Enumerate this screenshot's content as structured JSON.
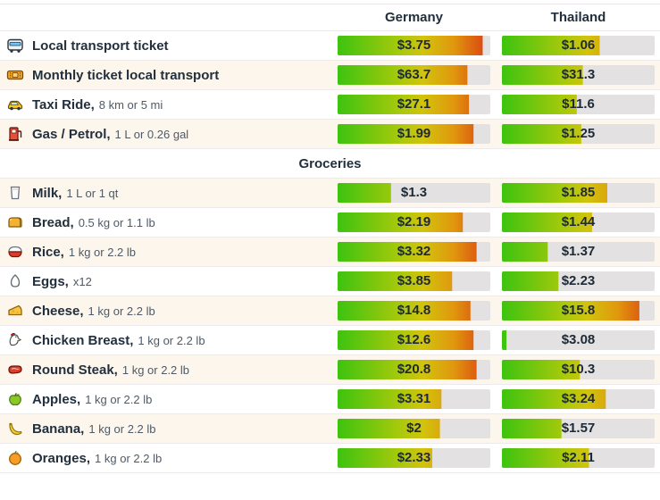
{
  "table": {
    "columns": [
      "Germany",
      "Thailand"
    ],
    "rows": [
      {
        "icon": "bus-icon",
        "name": "Local transport ticket",
        "detail": "",
        "germany": {
          "value": "$3.75",
          "pct": 95
        },
        "thailand": {
          "value": "$1.06",
          "pct": 64
        }
      },
      {
        "icon": "ticket-icon",
        "name": "Monthly ticket local transport",
        "detail": "",
        "germany": {
          "value": "$63.7",
          "pct": 85
        },
        "thailand": {
          "value": "$31.3",
          "pct": 53
        }
      },
      {
        "icon": "taxi-icon",
        "name": "Taxi Ride,",
        "detail": "8 km or 5 mi",
        "germany": {
          "value": "$27.1",
          "pct": 86
        },
        "thailand": {
          "value": "$11.6",
          "pct": 49
        }
      },
      {
        "icon": "fuel-icon",
        "name": "Gas / Petrol,",
        "detail": "1 L or 0.26 gal",
        "germany": {
          "value": "$1.99",
          "pct": 89
        },
        "thailand": {
          "value": "$1.25",
          "pct": 52
        }
      },
      {
        "section": "Groceries"
      },
      {
        "icon": "milk-icon",
        "name": "Milk,",
        "detail": "1 L or 1 qt",
        "germany": {
          "value": "$1.3",
          "pct": 35
        },
        "thailand": {
          "value": "$1.85",
          "pct": 69
        }
      },
      {
        "icon": "bread-icon",
        "name": "Bread,",
        "detail": "0.5 kg or 1.1 lb",
        "germany": {
          "value": "$2.19",
          "pct": 82
        },
        "thailand": {
          "value": "$1.44",
          "pct": 59
        }
      },
      {
        "icon": "rice-icon",
        "name": "Rice,",
        "detail": "1 kg or 2.2 lb",
        "germany": {
          "value": "$3.32",
          "pct": 91
        },
        "thailand": {
          "value": "$1.37",
          "pct": 30
        }
      },
      {
        "icon": "egg-icon",
        "name": "Eggs,",
        "detail": "x12",
        "germany": {
          "value": "$3.85",
          "pct": 75
        },
        "thailand": {
          "value": "$2.23",
          "pct": 37
        }
      },
      {
        "icon": "cheese-icon",
        "name": "Cheese,",
        "detail": "1 kg or 2.2 lb",
        "germany": {
          "value": "$14.8",
          "pct": 87
        },
        "thailand": {
          "value": "$15.8",
          "pct": 90
        }
      },
      {
        "icon": "chicken-icon",
        "name": "Chicken Breast,",
        "detail": "1 kg or 2.2 lb",
        "germany": {
          "value": "$12.6",
          "pct": 89
        },
        "thailand": {
          "value": "$3.08",
          "pct": 3
        }
      },
      {
        "icon": "steak-icon",
        "name": "Round Steak,",
        "detail": "1 kg or 2.2 lb",
        "germany": {
          "value": "$20.8",
          "pct": 91
        },
        "thailand": {
          "value": "$10.3",
          "pct": 51
        }
      },
      {
        "icon": "apple-icon",
        "name": "Apples,",
        "detail": "1 kg or 2.2 lb",
        "germany": {
          "value": "$3.31",
          "pct": 68
        },
        "thailand": {
          "value": "$3.24",
          "pct": 68
        }
      },
      {
        "icon": "banana-icon",
        "name": "Banana,",
        "detail": "1 kg or 2.2 lb",
        "germany": {
          "value": "$2",
          "pct": 67
        },
        "thailand": {
          "value": "$1.57",
          "pct": 39
        }
      },
      {
        "icon": "orange-icon",
        "name": "Oranges,",
        "detail": "1 kg or 2.2 lb",
        "germany": {
          "value": "$2.33",
          "pct": 62
        },
        "thailand": {
          "value": "$2.11",
          "pct": 57
        }
      }
    ]
  },
  "colors": {
    "bar_gradient": [
      "#3dc30f",
      "#a6c90c",
      "#d2c30d",
      "#e0970e",
      "#dc4511"
    ],
    "bar_track": "#e3e1e2",
    "row_alt_background": "#fdf6ec",
    "text": "#22303e",
    "detail_text": "#4e5a67"
  },
  "chart_data": {
    "type": "bar",
    "title": "",
    "categories": [
      "Local transport ticket",
      "Monthly ticket local transport",
      "Taxi Ride (8 km or 5 mi)",
      "Gas / Petrol (1 L or 0.26 gal)",
      "Milk (1 L or 1 qt)",
      "Bread (0.5 kg or 1.1 lb)",
      "Rice (1 kg or 2.2 lb)",
      "Eggs (x12)",
      "Cheese (1 kg or 2.2 lb)",
      "Chicken Breast (1 kg or 2.2 lb)",
      "Round Steak (1 kg or 2.2 lb)",
      "Apples (1 kg or 2.2 lb)",
      "Banana (1 kg or 2.2 lb)",
      "Oranges (1 kg or 2.2 lb)"
    ],
    "series": [
      {
        "name": "Germany",
        "values_usd": [
          3.75,
          63.7,
          27.1,
          1.99,
          1.3,
          2.19,
          3.32,
          3.85,
          14.8,
          12.6,
          20.8,
          3.31,
          2,
          2.33
        ],
        "bar_fill_pct": [
          95,
          85,
          86,
          89,
          35,
          82,
          91,
          75,
          87,
          89,
          91,
          68,
          67,
          62
        ]
      },
      {
        "name": "Thailand",
        "values_usd": [
          1.06,
          31.3,
          11.6,
          1.25,
          1.85,
          1.44,
          1.37,
          2.23,
          15.8,
          3.08,
          10.3,
          3.24,
          1.57,
          2.11
        ],
        "bar_fill_pct": [
          64,
          53,
          49,
          52,
          69,
          59,
          30,
          37,
          90,
          3,
          51,
          68,
          39,
          57
        ]
      }
    ],
    "sections": [
      {
        "label": "Groceries",
        "before_category": "Milk (1 L or 1 qt)"
      }
    ],
    "layout": {
      "value_labels": "centered on bar track",
      "bar_color_scale": "green-to-red fixed gradient clipped at fill percent",
      "grid": false,
      "legend": "column headers"
    }
  }
}
